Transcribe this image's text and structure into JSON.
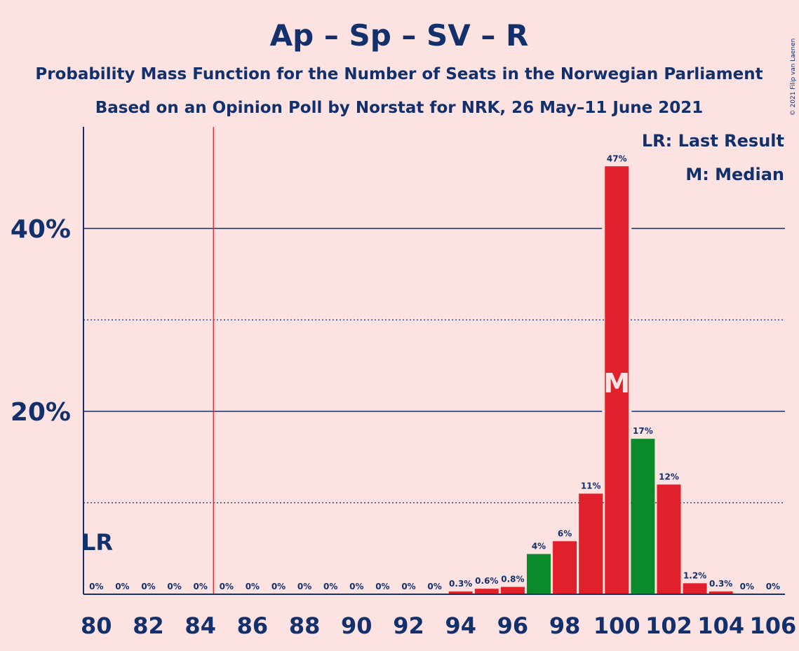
{
  "chart_data": {
    "type": "bar",
    "title": "Ap – Sp – SV – R",
    "subtitle": "Probability Mass Function for the Number of Seats in the Norwegian Parliament",
    "subtitle2": "Based on an Opinion Poll by Norstat for NRK, 26 May–11 June 2021",
    "copyright": "© 2021 Filip van Laenen",
    "xlabel": "",
    "ylabel": "",
    "xlim": [
      80,
      106
    ],
    "ylim": [
      0,
      50
    ],
    "grid": true,
    "y_ticks": [
      {
        "value": 20,
        "label": "20%"
      },
      {
        "value": 40,
        "label": "40%"
      }
    ],
    "y_minor_gridlines": [
      10,
      30
    ],
    "x_tick_labels": [
      "80",
      "82",
      "84",
      "86",
      "88",
      "90",
      "92",
      "94",
      "96",
      "98",
      "100",
      "102",
      "104",
      "106"
    ],
    "legend": {
      "position": "top-right",
      "items": [
        "LR: Last Result",
        "M: Median"
      ]
    },
    "last_result": {
      "seat": 84.5,
      "label": "LR",
      "color": "#e0202a"
    },
    "median": {
      "seat": 100,
      "label": "M"
    },
    "colors": {
      "red": "#e0202a",
      "green": "#0a8a2a",
      "background": "#fde2e2",
      "text": "#12306b"
    },
    "series": [
      {
        "x": [
          80,
          81,
          82,
          83,
          84,
          85,
          86,
          87,
          88,
          89,
          90,
          91,
          92,
          93,
          94,
          95,
          96,
          97,
          98,
          99,
          100,
          101,
          102,
          103,
          104,
          105,
          106
        ],
        "values": [
          0,
          0,
          0,
          0,
          0,
          0,
          0,
          0,
          0,
          0,
          0,
          0,
          0,
          0,
          0.3,
          0.6,
          0.8,
          4.4,
          5.8,
          11,
          46.8,
          17,
          12,
          1.2,
          0.3,
          0,
          0
        ],
        "labels": [
          "0%",
          "0%",
          "0%",
          "0%",
          "0%",
          "0%",
          "0%",
          "0%",
          "0%",
          "0%",
          "0%",
          "0%",
          "0%",
          "0%",
          "0.3%",
          "0.6%",
          "0.8%",
          "4%",
          "6%",
          "11%",
          "47%",
          "17%",
          "12%",
          "1.2%",
          "0.3%",
          "0%",
          "0%"
        ],
        "colors": [
          "red",
          "red",
          "red",
          "red",
          "red",
          "red",
          "red",
          "red",
          "red",
          "red",
          "red",
          "red",
          "red",
          "red",
          "red",
          "red",
          "red",
          "green",
          "red",
          "red",
          "red",
          "green",
          "red",
          "red",
          "red",
          "red",
          "red"
        ]
      }
    ]
  }
}
